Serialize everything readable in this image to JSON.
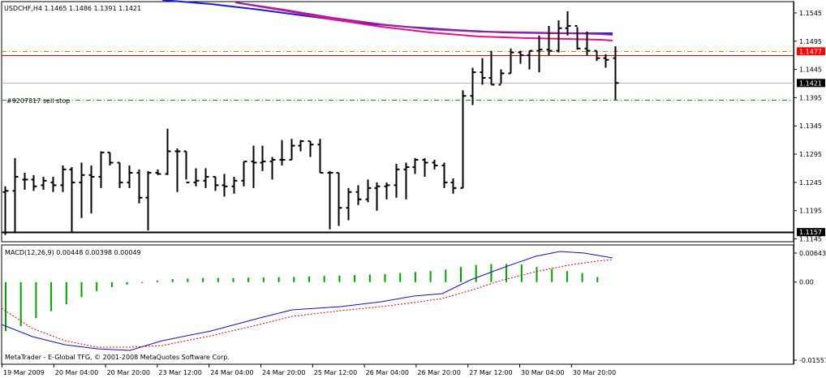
{
  "window": {
    "symbol_header": "USDCHF,H4  1.1465 1.1486 1.1391 1.1421",
    "order_label": "#9207817 sell stop",
    "footer": "MetaTrader - E-Global TFG, © 2001-2008 MetaQuotes Software Corp."
  },
  "price_axis": {
    "ticks": [
      "1.1545",
      "1.1495",
      "1.1445",
      "1.1395",
      "1.1345",
      "1.1295",
      "1.1245",
      "1.1195",
      "1.1145"
    ],
    "range": [
      1.114,
      1.1565
    ],
    "tags": [
      {
        "text": "1.1477",
        "price": 1.1477,
        "bg": "#ff0000",
        "fg": "#ffffff"
      },
      {
        "text": "1.1421",
        "price": 1.1421,
        "bg": "#000000",
        "fg": "#ffffff"
      },
      {
        "text": "1.1157",
        "price": 1.1157,
        "bg": "#000000",
        "fg": "#ffffff"
      }
    ]
  },
  "macd": {
    "label": "MACD(12,26,9) 0.00448 0.00398 0.00049",
    "ticks": [
      "0.00643",
      "0.00",
      "-0.01557"
    ],
    "range": [
      -0.01557,
      0.00643
    ]
  },
  "time_axis": {
    "labels": [
      "19 Mar 2009",
      "20 Mar 04:00",
      "20 Mar 20:00",
      "23 Mar 12:00",
      "24 Mar 04:00",
      "24 Mar 20:00",
      "25 Mar 12:00",
      "26 Mar 04:00",
      "26 Mar 20:00",
      "27 Mar 12:00",
      "30 Mar 04:00",
      "30 Mar 20:00"
    ]
  },
  "chart_data": {
    "type": "ohlc",
    "series": [
      {
        "name": "USDCHF,H4",
        "bars": [
          [
            1.1228,
            1.1238,
            1.1152,
            1.123
          ],
          [
            1.123,
            1.1288,
            1.1155,
            1.1255
          ],
          [
            1.125,
            1.1262,
            1.1232,
            1.125
          ],
          [
            1.125,
            1.1258,
            1.123,
            1.1238
          ],
          [
            1.124,
            1.1255,
            1.1232,
            1.1248
          ],
          [
            1.1245,
            1.1255,
            1.1228,
            1.124
          ],
          [
            1.124,
            1.1275,
            1.1228,
            1.1268
          ],
          [
            1.1268,
            1.1272,
            1.1158,
            1.1245
          ],
          [
            1.1245,
            1.128,
            1.1182,
            1.1258
          ],
          [
            1.1258,
            1.1275,
            1.119,
            1.1255
          ],
          [
            1.1255,
            1.13,
            1.1235,
            1.1298
          ],
          [
            1.1298,
            1.1298,
            1.1275,
            1.128
          ],
          [
            1.128,
            1.128,
            1.1235,
            1.1245
          ],
          [
            1.1245,
            1.1275,
            1.1235,
            1.1262
          ],
          [
            1.1262,
            1.1268,
            1.1208,
            1.1218
          ],
          [
            1.1218,
            1.1265,
            1.116,
            1.1262
          ],
          [
            1.1262,
            1.1268,
            1.1258,
            1.126
          ],
          [
            1.126,
            1.134,
            1.1258,
            1.13
          ],
          [
            1.13,
            1.1305,
            1.1228,
            1.13
          ],
          [
            1.13,
            1.13,
            1.125,
            1.1245
          ],
          [
            1.1245,
            1.127,
            1.1238,
            1.1248
          ],
          [
            1.1248,
            1.127,
            1.1235,
            1.1255
          ],
          [
            1.1255,
            1.1255,
            1.123,
            1.124
          ],
          [
            1.124,
            1.126,
            1.122,
            1.1238
          ],
          [
            1.1238,
            1.1255,
            1.1225,
            1.1248
          ],
          [
            1.1248,
            1.1282,
            1.1238,
            1.1282
          ],
          [
            1.1282,
            1.131,
            1.1235,
            1.128
          ],
          [
            1.128,
            1.131,
            1.1265,
            1.1282
          ],
          [
            1.1282,
            1.129,
            1.125,
            1.1285
          ],
          [
            1.1285,
            1.132,
            1.1275,
            1.1285
          ],
          [
            1.1285,
            1.1322,
            1.1285,
            1.131
          ],
          [
            1.131,
            1.132,
            1.13,
            1.1318
          ],
          [
            1.1318,
            1.1318,
            1.129,
            1.1312
          ],
          [
            1.1312,
            1.1322,
            1.1262,
            1.1262
          ],
          [
            1.1262,
            1.1265,
            1.1162,
            1.1262
          ],
          [
            1.1262,
            1.1262,
            1.1168,
            1.12
          ],
          [
            1.12,
            1.1235,
            1.1178,
            1.1228
          ],
          [
            1.1228,
            1.124,
            1.1205,
            1.1215
          ],
          [
            1.1215,
            1.125,
            1.121,
            1.1235
          ],
          [
            1.1235,
            1.1245,
            1.1195,
            1.1238
          ],
          [
            1.1238,
            1.1245,
            1.1215,
            1.124
          ],
          [
            1.124,
            1.1278,
            1.1218,
            1.1268
          ],
          [
            1.1268,
            1.128,
            1.1215,
            1.1272
          ],
          [
            1.1272,
            1.1288,
            1.126,
            1.1285
          ],
          [
            1.1285,
            1.1288,
            1.1255,
            1.128
          ],
          [
            1.128,
            1.1285,
            1.1268,
            1.1275
          ],
          [
            1.1275,
            1.128,
            1.1235,
            1.1245
          ],
          [
            1.1245,
            1.1252,
            1.1225,
            1.1235
          ],
          [
            1.1235,
            1.1408,
            1.1235,
            1.1398
          ],
          [
            1.1398,
            1.1448,
            1.1382,
            1.144
          ],
          [
            1.144,
            1.1465,
            1.1418,
            1.143
          ],
          [
            1.143,
            1.1478,
            1.1418,
            1.1418
          ],
          [
            1.1418,
            1.1445,
            1.142,
            1.1438
          ],
          [
            1.1438,
            1.1482,
            1.1438,
            1.1475
          ],
          [
            1.1475,
            1.1478,
            1.1455,
            1.147
          ],
          [
            1.147,
            1.1478,
            1.1445,
            1.1478
          ],
          [
            1.1478,
            1.1505,
            1.144,
            1.148
          ],
          [
            1.148,
            1.1522,
            1.147,
            1.1478
          ],
          [
            1.1478,
            1.1532,
            1.1475,
            1.1518
          ],
          [
            1.1518,
            1.1548,
            1.1505,
            1.1522
          ],
          [
            1.1522,
            1.152,
            1.148,
            1.1482
          ],
          [
            1.1482,
            1.1512,
            1.147,
            1.1478
          ],
          [
            1.1478,
            1.1478,
            1.146,
            1.1465
          ],
          [
            1.1465,
            1.1472,
            1.1448,
            1.1462
          ],
          [
            1.1465,
            1.1486,
            1.1391,
            1.1421
          ]
        ]
      },
      {
        "name": "MA blue",
        "color": "#1a1ae6"
      },
      {
        "name": "MA magenta",
        "color": "#e6108a"
      },
      {
        "name": "MA purple",
        "color": "#a0209a"
      },
      {
        "name": "MACD main",
        "color": "#1010c0"
      },
      {
        "name": "MACD signal",
        "color": "#e00000"
      }
    ],
    "histogram_color": "#00a000",
    "levels": [
      {
        "price": 1.1477,
        "style": "red-solid+orange-dashdot",
        "color": "#cc0000"
      },
      {
        "price": 1.1421,
        "style": "grey-solid",
        "color": "#b8b8b8"
      },
      {
        "price": 1.1391,
        "style": "green-dashdot",
        "color": "#00a000"
      },
      {
        "price": 1.1157,
        "style": "black-thick",
        "color": "#000000"
      }
    ]
  }
}
